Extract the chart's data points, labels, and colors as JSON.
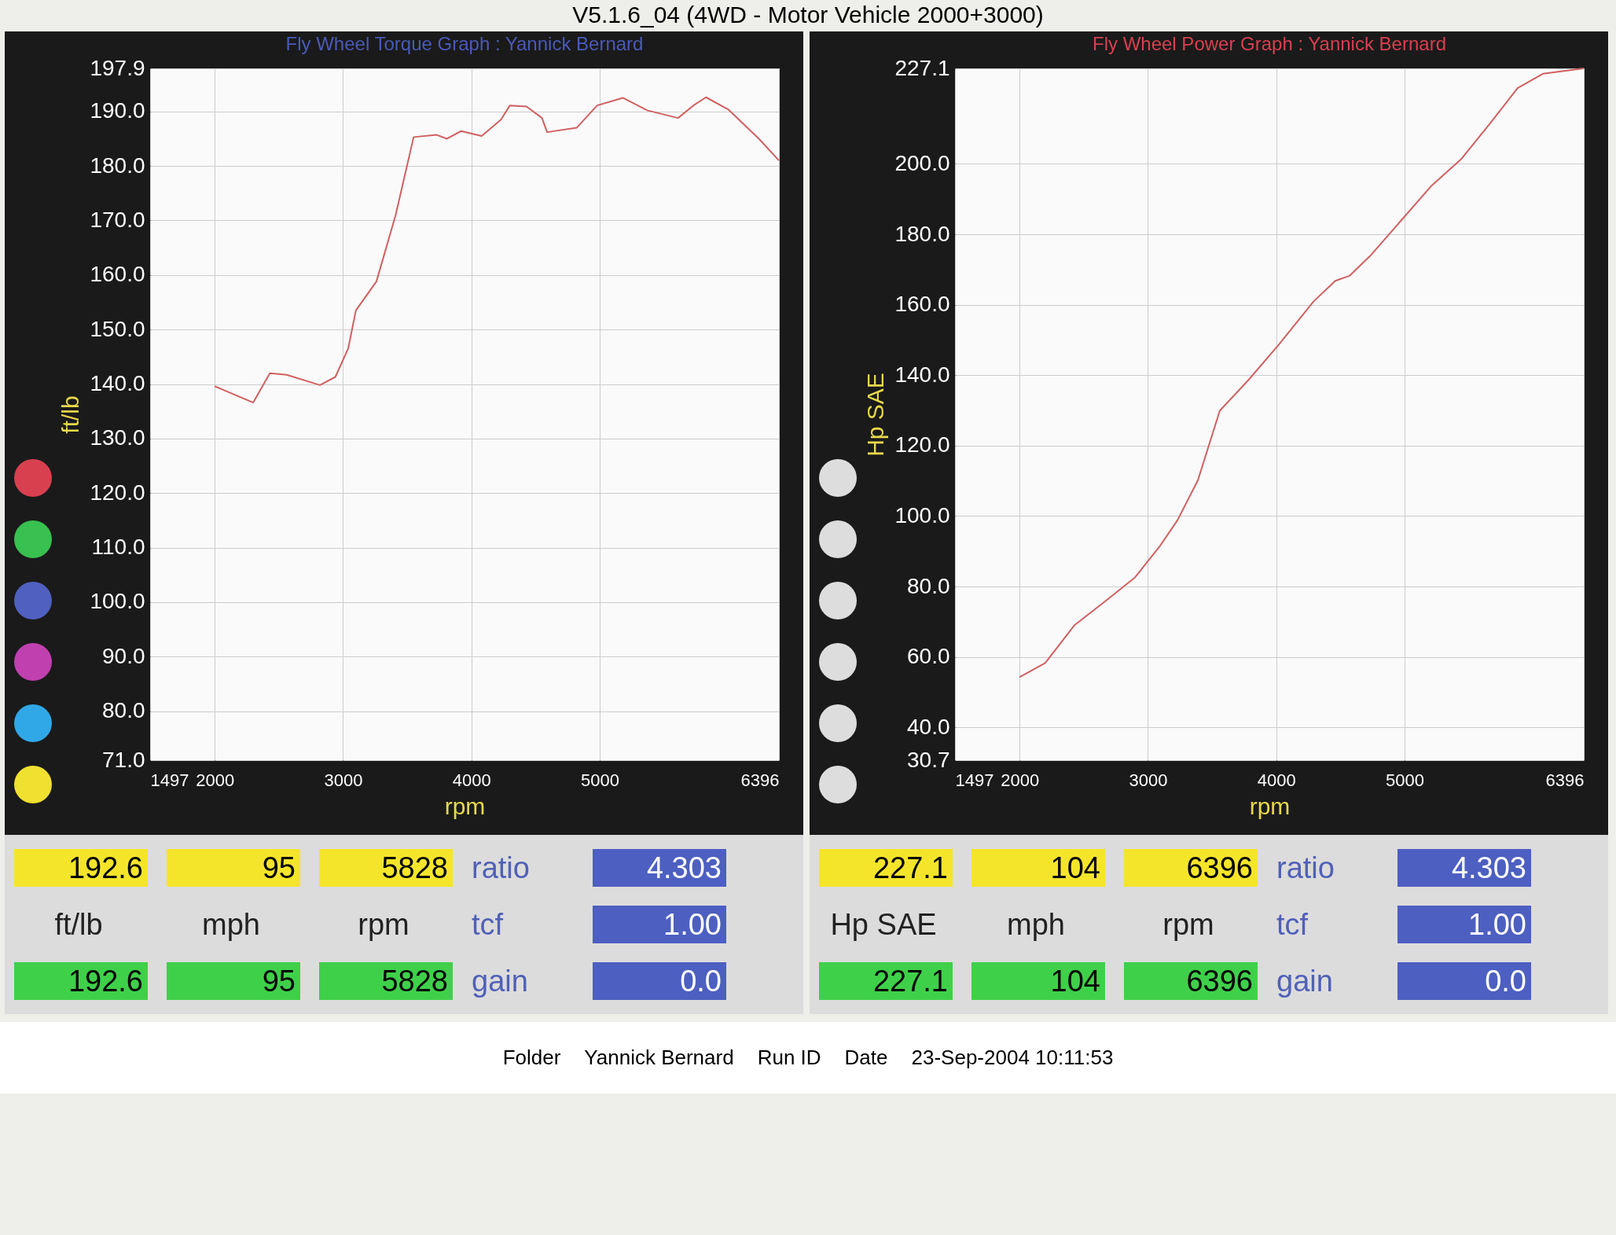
{
  "chart_data": [
    {
      "type": "other",
      "title": "V5.1.6_04 (4WD - Motor Vehicle 2000+3000)",
      "annotations": [
        "Folder",
        "Yannick Bernard",
        "Run ID",
        "Date",
        "23-Sep-2004  10:11:53"
      ]
    },
    {
      "type": "line",
      "title": "Fly Wheel Torque Graph : Yannick Bernard",
      "xlabel": "rpm",
      "ylabel": "ft/lb",
      "grid": true,
      "xlim": [
        1497,
        6396
      ],
      "xticks": [
        1497,
        2000,
        3000,
        4000,
        5000,
        6396
      ],
      "ylim": [
        71,
        197.9
      ],
      "yticks": [
        {
          "value": 71,
          "label": "71.0"
        },
        {
          "value": 80,
          "label": "80.0"
        },
        {
          "value": 90,
          "label": "90.0"
        },
        {
          "value": 100,
          "label": "100.0"
        },
        {
          "value": 110,
          "label": "110.0"
        },
        {
          "value": 120,
          "label": "120.0"
        },
        {
          "value": 130,
          "label": "130.0"
        },
        {
          "value": 140,
          "label": "140.0"
        },
        {
          "value": 150,
          "label": "150.0"
        },
        {
          "value": 160,
          "label": "160.0"
        },
        {
          "value": 170,
          "label": "170.0"
        },
        {
          "value": 180,
          "label": "180.0"
        },
        {
          "value": 190,
          "label": "190.0"
        },
        197.9
      ],
      "x": [
        2000,
        2080,
        2300,
        2430,
        2560,
        2820,
        2940,
        3040,
        3100,
        3260,
        3410,
        3550,
        3730,
        3810,
        3920,
        4080,
        4230,
        4300,
        4430,
        4550,
        4590,
        4820,
        4980,
        5180,
        5370,
        5610,
        5730,
        5828,
        6000,
        6240,
        6396
      ],
      "series": [
        {
          "color": "#d06060",
          "values": [
            139.6,
            138.8,
            136.6,
            142,
            141.7,
            139.8,
            141.3,
            146.5,
            153.5,
            158.8,
            171,
            185.3,
            185.7,
            185,
            186.4,
            185.5,
            188.5,
            191.1,
            190.9,
            188.8,
            186.2,
            187,
            191.1,
            192.5,
            190.2,
            188.8,
            191.1,
            192.6,
            190.4,
            185,
            181
          ]
        }
      ],
      "annotations": [
        "192.6",
        "95",
        "5828",
        "ratio",
        "4.303",
        "ft/lb",
        "mph",
        "rpm",
        "tcf",
        "1.00",
        "192.6",
        "95",
        "5828",
        "gain",
        "0.0"
      ]
    },
    {
      "type": "line",
      "title": "Fly Wheel Power Graph : Yannick Bernard",
      "xlabel": "rpm",
      "ylabel": "Hp SAE",
      "grid": true,
      "xlim": [
        1497,
        6396
      ],
      "xticks": [
        1497,
        2000,
        3000,
        4000,
        5000,
        6396
      ],
      "ylim": [
        30.7,
        227.1
      ],
      "yticks": [
        30.7,
        {
          "value": 40,
          "label": "40.0"
        },
        {
          "value": 60,
          "label": "60.0"
        },
        {
          "value": 80,
          "label": "80.0"
        },
        {
          "value": 100,
          "label": "100.0"
        },
        {
          "value": 120,
          "label": "120.0"
        },
        {
          "value": 140,
          "label": "140.0"
        },
        {
          "value": 160,
          "label": "160.0"
        },
        {
          "value": 180,
          "label": "180.0"
        },
        {
          "value": 200,
          "label": "200.0"
        },
        227.1
      ],
      "x": [
        2000,
        2200,
        2430,
        2670,
        2900,
        3090,
        3230,
        3390,
        3560,
        3780,
        4020,
        4290,
        4460,
        4570,
        4730,
        4970,
        5210,
        5440,
        5680,
        5880,
        6080,
        6396
      ],
      "series": [
        {
          "color": "#d06060",
          "values": [
            54.3,
            58.3,
            69.1,
            75.9,
            82.6,
            91.3,
            98.8,
            110.2,
            129.9,
            138.5,
            148.7,
            160.9,
            166.8,
            168.2,
            173.8,
            183.8,
            193.8,
            201.3,
            212.1,
            221.5,
            225.6,
            227.1
          ]
        }
      ],
      "annotations": [
        "227.1",
        "104",
        "6396",
        "ratio",
        "4.303",
        "Hp SAE",
        "mph",
        "rpm",
        "tcf",
        "1.00",
        "227.1",
        "104",
        "6396",
        "gain",
        "0.0"
      ]
    }
  ]
}
